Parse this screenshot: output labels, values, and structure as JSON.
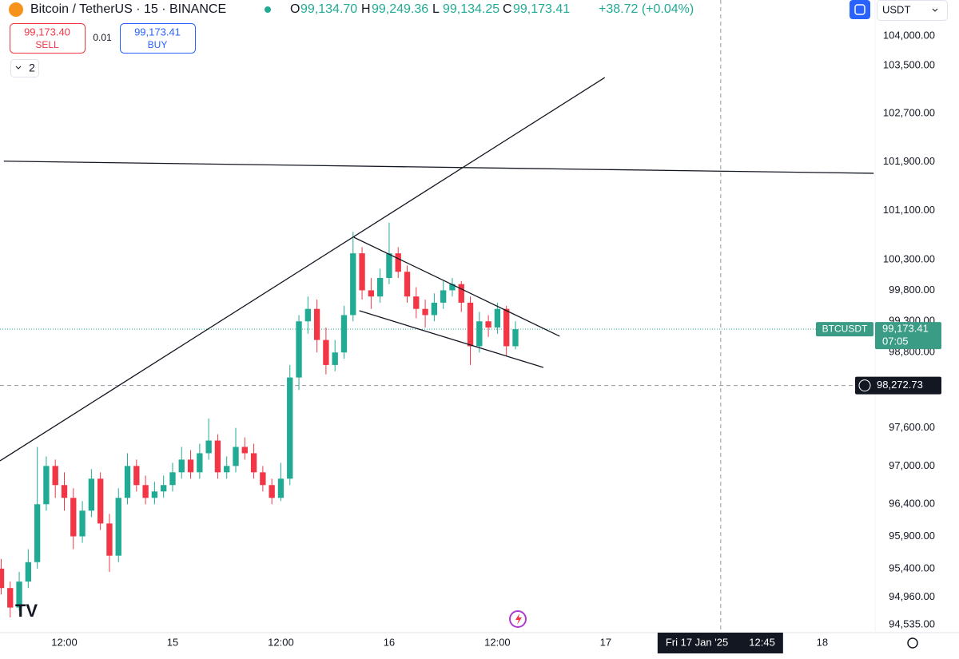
{
  "header": {
    "title": "Bitcoin / TetherUS · 15 · BINANCE",
    "ohlc": [
      {
        "key": "O",
        "value": "99,134.70"
      },
      {
        "key": "H",
        "value": "99,249.36"
      },
      {
        "key": "L",
        "value": "99,134.25"
      },
      {
        "key": "C",
        "value": "99,173.41"
      }
    ],
    "change": "+38.72 (+0.04%)"
  },
  "trade": {
    "sell_price": "99,173.40",
    "sell": "SELL",
    "spread": "0.01",
    "buy_price": "99,173.41",
    "buy": "BUY"
  },
  "indicators_count": "2",
  "currency": "USDT",
  "chart_data": {
    "type": "candlestick",
    "log_scale": true,
    "grid": false,
    "up_color": "#22ab94",
    "down_color": "#f23645",
    "xlim": [
      4.87,
      101.86
    ],
    "ylim": [
      94440,
      104606
    ],
    "xticks": [
      {
        "value": 12,
        "label": "12:00"
      },
      {
        "value": 24,
        "label": "15"
      },
      {
        "value": 36,
        "label": "12:00"
      },
      {
        "value": 48,
        "label": "16"
      },
      {
        "value": 60,
        "label": "12:00"
      },
      {
        "value": 72,
        "label": "17"
      },
      {
        "value": 96,
        "label": "18"
      }
    ],
    "yticks": [
      {
        "value": 104000,
        "label": "104,000.00"
      },
      {
        "value": 103500,
        "label": "103,500.00"
      },
      {
        "value": 102700,
        "label": "102,700.00"
      },
      {
        "value": 101900,
        "label": "101,900.00"
      },
      {
        "value": 101100,
        "label": "101,100.00"
      },
      {
        "value": 100300,
        "label": "100,300.00"
      },
      {
        "value": 99800,
        "label": "99,800.00"
      },
      {
        "value": 99300,
        "label": "99,300.00"
      },
      {
        "value": 98800,
        "label": "98,800.00"
      },
      {
        "value": 97600,
        "label": "97,600.00"
      },
      {
        "value": 97000,
        "label": "97,000.00"
      },
      {
        "value": 96400,
        "label": "96,400.00"
      },
      {
        "value": 95900,
        "label": "95,900.00"
      },
      {
        "value": 95400,
        "label": "95,400.00"
      },
      {
        "value": 94960,
        "label": "94,960.00"
      },
      {
        "value": 94535,
        "label": "94,535.00"
      }
    ],
    "x": [
      5,
      6,
      7,
      8,
      9,
      10,
      11,
      12,
      13,
      14,
      15,
      16,
      17,
      18,
      19,
      20,
      21,
      22,
      23,
      24,
      25,
      26,
      27,
      28,
      29,
      30,
      31,
      32,
      33,
      34,
      35,
      36,
      37,
      38,
      39,
      40,
      41,
      42,
      43,
      44,
      45,
      46,
      47,
      48,
      49,
      50,
      51,
      52,
      53,
      54,
      55,
      56,
      57,
      58,
      59,
      60,
      61,
      62
    ],
    "open": [
      95400,
      95100,
      94800,
      95200,
      95500,
      96400,
      97000,
      96700,
      96500,
      95900,
      96300,
      96800,
      96100,
      95600,
      96500,
      97000,
      96700,
      96500,
      96600,
      96700,
      96900,
      97100,
      96900,
      97200,
      97400,
      96900,
      97000,
      97300,
      97200,
      96900,
      96700,
      96500,
      96800,
      98400,
      99300,
      99500,
      99000,
      98600,
      98800,
      99400,
      100400,
      99800,
      99700,
      100000,
      100400,
      100100,
      99700,
      99500,
      99400,
      99600,
      99800,
      99900,
      99600,
      98900,
      99300,
      99200,
      99500,
      98900
    ],
    "high": [
      95550,
      95200,
      95350,
      95700,
      97300,
      97150,
      97100,
      96900,
      96650,
      96450,
      96950,
      96900,
      96250,
      96650,
      97200,
      97100,
      96850,
      96750,
      96850,
      97050,
      97300,
      97250,
      97350,
      97750,
      97500,
      97150,
      97600,
      97450,
      97350,
      97000,
      96800,
      97050,
      98600,
      99400,
      99700,
      99650,
      99200,
      99000,
      99550,
      100750,
      100500,
      100000,
      100150,
      100900,
      100500,
      100200,
      99850,
      99650,
      99750,
      99950,
      100000,
      99950,
      99700,
      99450,
      99400,
      99600,
      99550,
      99300
    ],
    "low": [
      95000,
      94650,
      94750,
      95100,
      95400,
      96300,
      96500,
      96300,
      95700,
      95800,
      96200,
      96000,
      95350,
      95500,
      96400,
      96600,
      96400,
      96400,
      96500,
      96600,
      96800,
      96800,
      96800,
      97100,
      96800,
      96800,
      96900,
      97100,
      96800,
      96600,
      96400,
      96450,
      96700,
      98200,
      99100,
      98800,
      98450,
      98500,
      98700,
      99300,
      99650,
      99500,
      99600,
      99900,
      100000,
      99600,
      99350,
      99200,
      99300,
      99500,
      99700,
      99450,
      98600,
      98800,
      99050,
      99100,
      98750,
      98850
    ],
    "close": [
      95100,
      94800,
      95200,
      95500,
      96400,
      97000,
      96700,
      96500,
      95900,
      96300,
      96800,
      96100,
      95600,
      96500,
      97000,
      96700,
      96500,
      96600,
      96700,
      96900,
      97100,
      96900,
      97200,
      97400,
      96900,
      97000,
      97300,
      97200,
      96900,
      96700,
      96500,
      96800,
      98400,
      99300,
      99500,
      99000,
      98600,
      98800,
      99400,
      100400,
      99800,
      99700,
      100000,
      100400,
      100100,
      99700,
      99500,
      99400,
      99600,
      99800,
      99900,
      99600,
      98900,
      99300,
      99200,
      99500,
      98900,
      99173.41
    ],
    "trend_lines": [
      {
        "x": [
          4.87,
          71.9
        ],
        "y": [
          97080,
          103300
        ]
      },
      {
        "x": [
          5.3,
          101.7
        ],
        "y": [
          101910,
          101710
        ]
      },
      {
        "x": [
          44.1,
          66.9
        ],
        "y": [
          100660,
          99060
        ]
      },
      {
        "x": [
          44.7,
          65.1
        ],
        "y": [
          99470,
          98560
        ]
      }
    ],
    "last_price": {
      "symbol": "BTCUSDT",
      "value": 99173.41,
      "label": "99,173.41",
      "countdown": "07:05"
    },
    "crosshair": {
      "y": {
        "value": 98272.73,
        "label": "98,272.73"
      },
      "x": {
        "value": 84.75,
        "date": "Fri 17 Jan '25",
        "time": "12:45"
      }
    }
  }
}
